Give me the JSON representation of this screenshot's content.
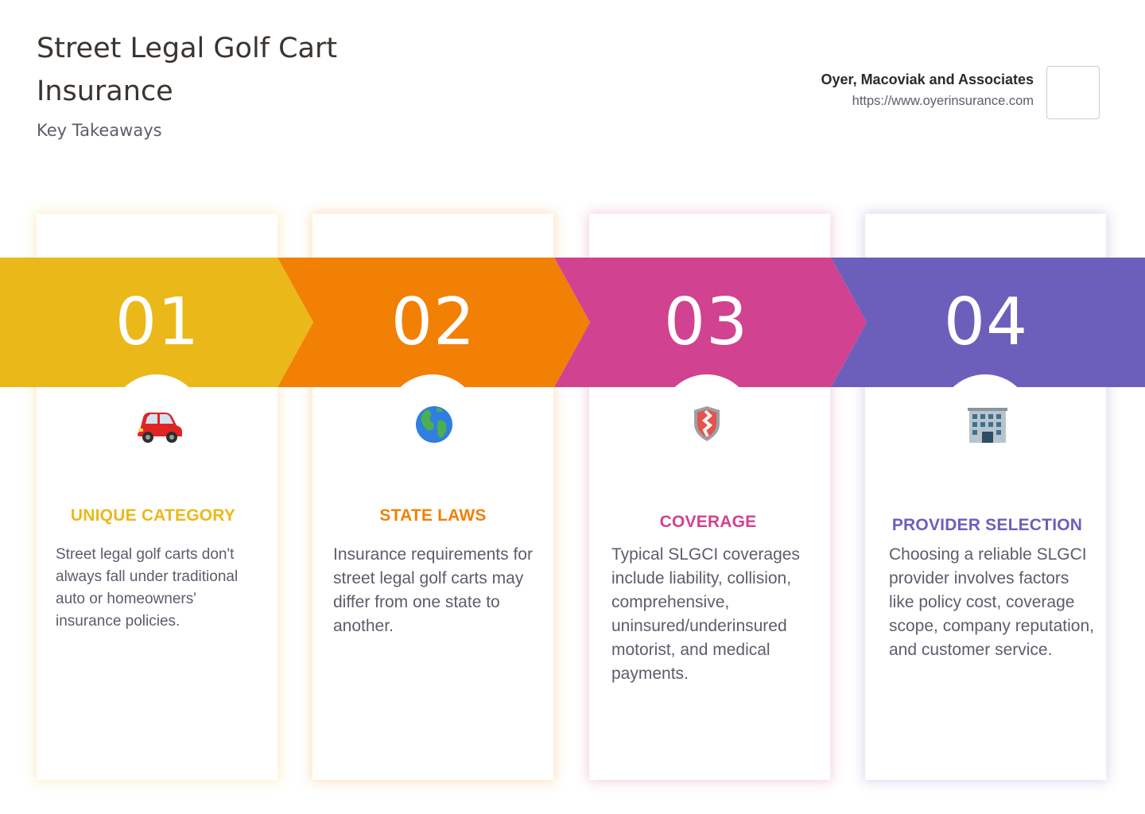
{
  "header": {
    "title": "Street Legal Golf Cart Insurance",
    "subtitle": "Key Takeaways"
  },
  "brand": {
    "name": "Oyer, Macoviak and Associates",
    "url": "https://www.oyerinsurance.com"
  },
  "steps": [
    {
      "number": "01",
      "icon": "car-icon",
      "color": "#EBB81A",
      "heading": "UNIQUE CATEGORY",
      "text": "Street legal golf carts don't always fall under traditional auto or homeowners' insurance policies."
    },
    {
      "number": "02",
      "icon": "globe-icon",
      "color": "#F28005",
      "heading": "STATE LAWS",
      "text": "Insurance requirements for street legal golf carts may differ from one state to another."
    },
    {
      "number": "03",
      "icon": "shield-icon",
      "color": "#D14290",
      "heading": "COVERAGE",
      "text": "Typical SLGCI coverages include liability, collision, comprehensive, uninsured/underinsured motorist, and medical payments."
    },
    {
      "number": "04",
      "icon": "office-building-icon",
      "color": "#6C5FBC",
      "heading": "PROVIDER SELECTION",
      "text": "Choosing a reliable SLGCI provider involves factors like policy cost, coverage scope, company reputation, and customer service."
    }
  ]
}
